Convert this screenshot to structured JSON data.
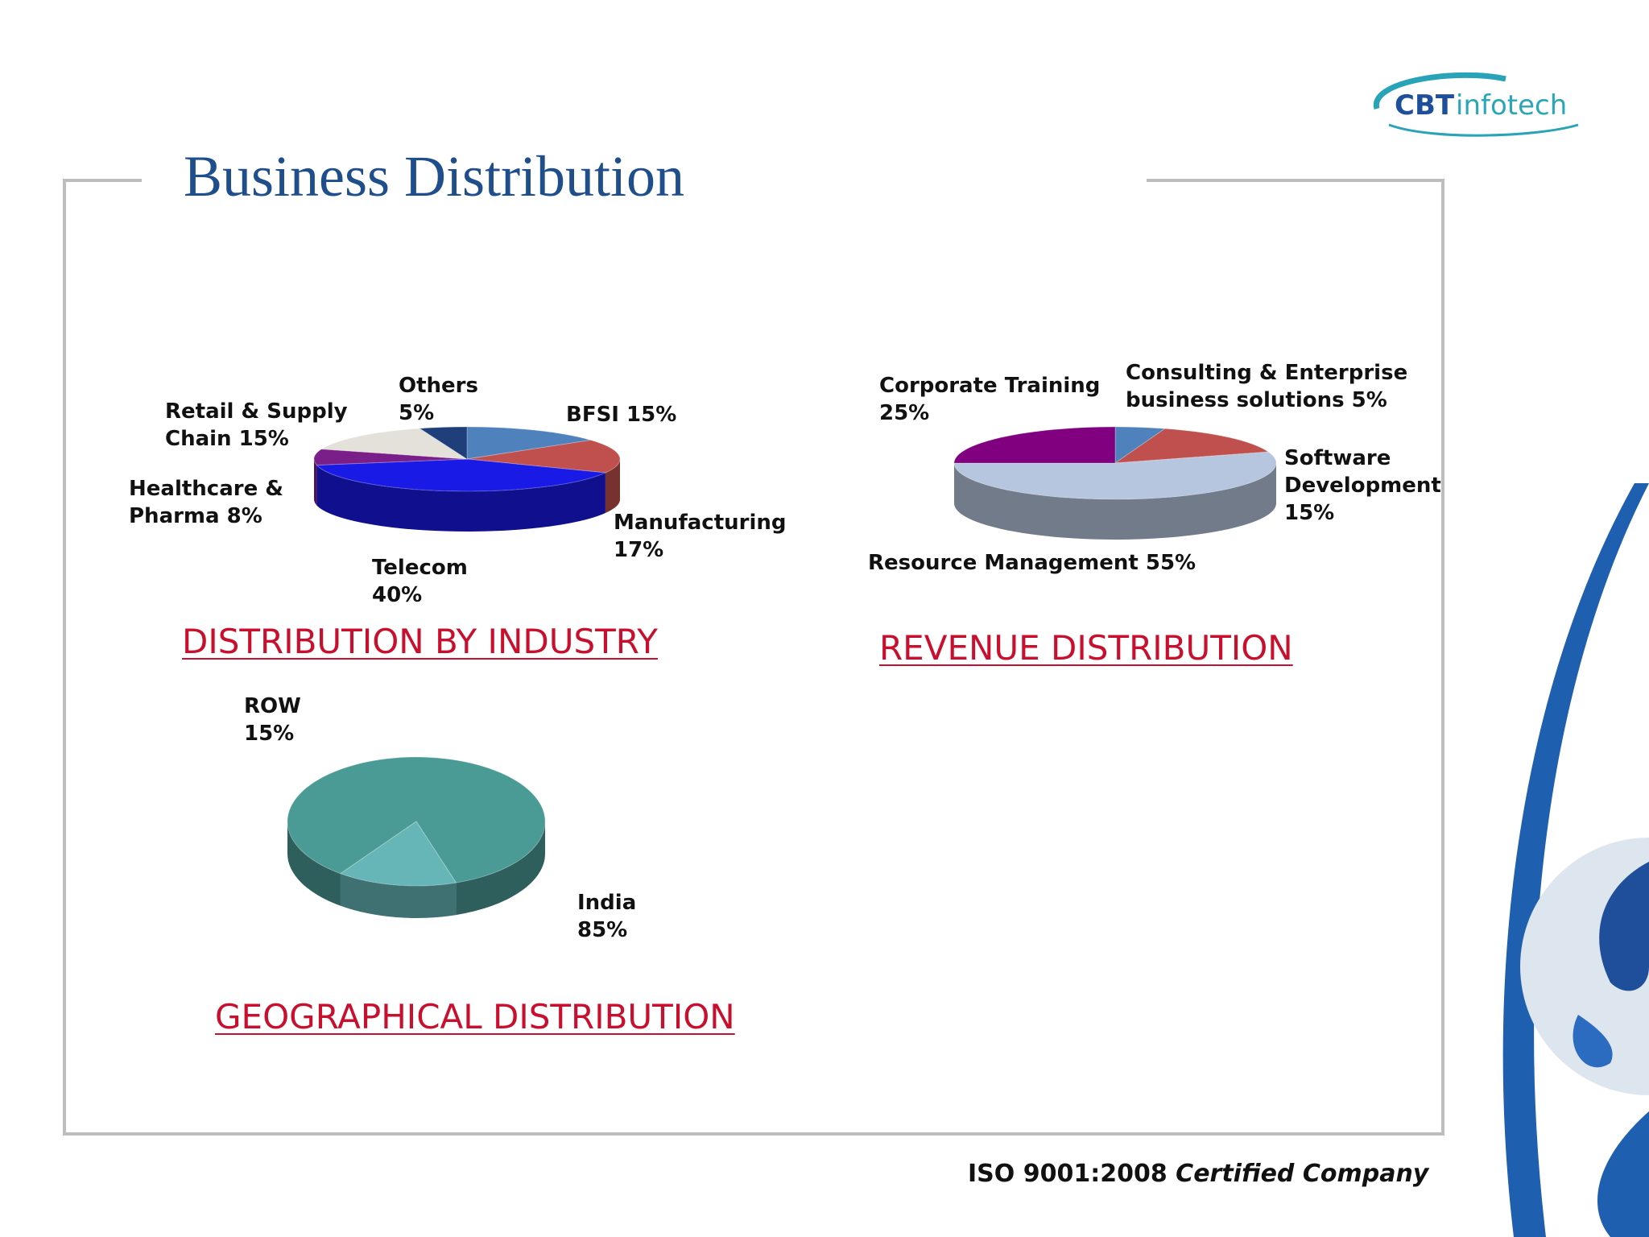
{
  "page": {
    "title": "Business Distribution",
    "footer_iso_bold": "ISO 9001:2008",
    "footer_iso_italic": "Certified Company"
  },
  "logo": {
    "name_bold": "CBT",
    "name_light": "infotech",
    "colors": {
      "cbt": "#1e4f9c",
      "infotech": "#2aa6b9",
      "swoosh": "#29a3b8"
    }
  },
  "colors": {
    "title": "#1f4e8c",
    "caption": "#c8102e",
    "frame": "#bdbdbd"
  },
  "chart_data": [
    {
      "id": "industry",
      "type": "pie",
      "title": "DISTRIBUTION BY INDUSTRY",
      "slices": [
        {
          "label": "BFSI 15%",
          "value": 15,
          "color": "#4f81bd"
        },
        {
          "label": "Manufacturing\n 17%",
          "value": 17,
          "color": "#c0504d"
        },
        {
          "label": "Telecom\n40%",
          "value": 40,
          "color": "#1a1ae6"
        },
        {
          "label": "Healthcare &\nPharma 8%",
          "value": 8,
          "color": "#7a1f8a"
        },
        {
          "label": "Retail & Supply\nChain  15%",
          "value": 15,
          "color": "#e3e1da"
        },
        {
          "label": "Others\n5%",
          "value": 5,
          "color": "#1f3f7a"
        }
      ]
    },
    {
      "id": "revenue",
      "type": "pie",
      "title": "REVENUE DISTRIBUTION",
      "slices": [
        {
          "label": "Consulting & Enterprise\nbusiness solutions 5%",
          "value": 5,
          "color": "#4f81bd"
        },
        {
          "label": "Software\nDevelopment\n15%",
          "value": 15,
          "color": "#c0504d"
        },
        {
          "label": "Resource Management 55%",
          "value": 55,
          "color": "#b6c6df"
        },
        {
          "label": "Corporate Training\n25%",
          "value": 25,
          "color": "#800080"
        }
      ]
    },
    {
      "id": "geo",
      "type": "pie",
      "title": "GEOGRAPHICAL DISTRIBUTION",
      "slices": [
        {
          "label": "India\n85%",
          "value": 85,
          "color": "#4a9a96"
        },
        {
          "label": "ROW\n15%",
          "value": 15,
          "color": "#66b6b8"
        }
      ]
    }
  ]
}
